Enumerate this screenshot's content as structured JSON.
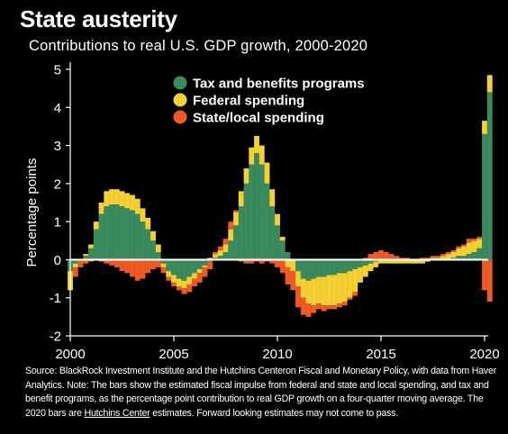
{
  "header": {
    "title": "State austerity",
    "subtitle": "Contributions to real U.S. GDP growth, 2000-2020"
  },
  "source": {
    "text_part1": "Source: BlackRock Investment Institute and the Hutchins Centeron Fiscal and Monetary Policy, with data from Haver Analytics. Note: The bars show the estimated fiscal impulse from federal and state and local spending, and tax and benefit programs, as the percentage point contribution to real GDP growth on a four-quarter moving average. The 2020 bars are ",
    "link_text": "Hutchins Center",
    "text_part2": " estimates. Forward looking estimates may not come to pass."
  },
  "colors": {
    "tax": "#3a8a5e",
    "federal": "#f5d033",
    "state": "#ef5a24",
    "background": "#000000",
    "axis": "#ffffff"
  },
  "chart_data": {
    "type": "bar",
    "stacked": true,
    "title": "State austerity",
    "subtitle": "Contributions to real U.S. GDP growth, 2000-2020",
    "ylabel": "Percentage points",
    "xlabel": "",
    "ylim": [
      -2,
      5
    ],
    "yticks": [
      -2,
      -1,
      0,
      1,
      2,
      3,
      4,
      5
    ],
    "xlim": [
      2000,
      2020.5
    ],
    "xticks": [
      2000,
      2005,
      2010,
      2015,
      2020
    ],
    "grid": false,
    "legend_position": "top-center",
    "x": [
      2000,
      2000.25,
      2000.5,
      2000.75,
      2001,
      2001.25,
      2001.5,
      2001.75,
      2002,
      2002.25,
      2002.5,
      2002.75,
      2003,
      2003.25,
      2003.5,
      2003.75,
      2004,
      2004.25,
      2004.5,
      2004.75,
      2005,
      2005.25,
      2005.5,
      2005.75,
      2006,
      2006.25,
      2006.5,
      2006.75,
      2007,
      2007.25,
      2007.5,
      2007.75,
      2008,
      2008.25,
      2008.5,
      2008.75,
      2009,
      2009.25,
      2009.5,
      2009.75,
      2010,
      2010.25,
      2010.5,
      2010.75,
      2011,
      2011.25,
      2011.5,
      2011.75,
      2012,
      2012.25,
      2012.5,
      2012.75,
      2013,
      2013.25,
      2013.5,
      2013.75,
      2014,
      2014.25,
      2014.5,
      2014.75,
      2015,
      2015.25,
      2015.5,
      2015.75,
      2016,
      2016.25,
      2016.5,
      2016.75,
      2017,
      2017.25,
      2017.5,
      2017.75,
      2018,
      2018.25,
      2018.5,
      2018.75,
      2019,
      2019.25,
      2019.5,
      2019.75,
      2020,
      2020.25
    ],
    "series": [
      {
        "name": "Tax and benefits programs",
        "color": "#3a8a5e",
        "values": [
          -0.3,
          -0.1,
          0.0,
          0.1,
          0.3,
          0.8,
          1.2,
          1.4,
          1.45,
          1.45,
          1.4,
          1.35,
          1.3,
          1.2,
          1.0,
          0.8,
          0.5,
          0.2,
          -0.1,
          -0.3,
          -0.4,
          -0.5,
          -0.55,
          -0.45,
          -0.35,
          -0.25,
          -0.15,
          -0.05,
          0.05,
          0.1,
          0.2,
          0.5,
          0.9,
          1.4,
          2.0,
          2.5,
          2.8,
          2.5,
          2.0,
          1.4,
          0.9,
          0.5,
          0.2,
          0.0,
          -0.3,
          -0.5,
          -0.55,
          -0.5,
          -0.45,
          -0.45,
          -0.4,
          -0.4,
          -0.35,
          -0.35,
          -0.3,
          -0.25,
          -0.2,
          -0.15,
          -0.1,
          -0.05,
          0.0,
          0.0,
          0.0,
          0.0,
          0.0,
          0.0,
          0.0,
          0.0,
          0.0,
          0.0,
          0.0,
          0.0,
          0.0,
          0.0,
          0.05,
          0.1,
          0.1,
          0.15,
          0.2,
          0.3,
          3.3,
          4.4
        ]
      },
      {
        "name": "Federal spending",
        "color": "#f5d033",
        "values": [
          -0.5,
          -0.1,
          0.0,
          0.05,
          0.1,
          0.2,
          0.3,
          0.4,
          0.4,
          0.4,
          0.4,
          0.4,
          0.4,
          0.4,
          0.35,
          0.3,
          0.25,
          0.2,
          -0.1,
          -0.15,
          -0.2,
          -0.2,
          -0.2,
          -0.2,
          -0.15,
          -0.1,
          -0.05,
          0.05,
          0.1,
          0.15,
          0.2,
          0.3,
          0.35,
          0.4,
          0.4,
          0.45,
          0.45,
          0.5,
          0.55,
          0.45,
          0.3,
          0.1,
          -0.2,
          -0.3,
          -0.4,
          -0.5,
          -0.6,
          -0.7,
          -0.7,
          -0.75,
          -0.8,
          -0.8,
          -0.8,
          -0.75,
          -0.7,
          -0.6,
          -0.4,
          -0.3,
          -0.2,
          -0.15,
          -0.1,
          -0.1,
          -0.1,
          -0.1,
          -0.1,
          -0.1,
          -0.1,
          -0.1,
          -0.1,
          -0.05,
          0.05,
          0.05,
          0.1,
          0.15,
          0.15,
          0.2,
          0.25,
          0.3,
          0.3,
          0.25,
          0.35,
          0.45
        ]
      },
      {
        "name": "State/local spending",
        "color": "#ef5a24",
        "values": [
          0.0,
          -0.25,
          -0.2,
          -0.1,
          -0.05,
          0.0,
          -0.05,
          -0.1,
          -0.15,
          -0.2,
          -0.3,
          -0.35,
          -0.45,
          -0.55,
          -0.5,
          -0.35,
          -0.25,
          -0.2,
          -0.15,
          -0.1,
          -0.1,
          -0.1,
          -0.15,
          -0.2,
          -0.2,
          -0.25,
          -0.25,
          -0.2,
          0.05,
          0.1,
          0.15,
          0.2,
          0.05,
          -0.05,
          -0.1,
          -0.1,
          -0.05,
          -0.1,
          -0.05,
          -0.1,
          -0.2,
          -0.35,
          -0.45,
          -0.5,
          -0.55,
          -0.45,
          -0.35,
          -0.2,
          -0.15,
          -0.15,
          -0.1,
          -0.1,
          -0.1,
          -0.1,
          -0.05,
          -0.1,
          0.0,
          0.05,
          0.15,
          0.2,
          0.25,
          0.2,
          0.15,
          0.1,
          0.05,
          0.05,
          0.0,
          0.0,
          0.05,
          0.05,
          0.05,
          0.05,
          0.05,
          0.05,
          0.05,
          0.05,
          0.05,
          0.1,
          0.05,
          0.05,
          -0.8,
          -1.1
        ]
      }
    ]
  }
}
